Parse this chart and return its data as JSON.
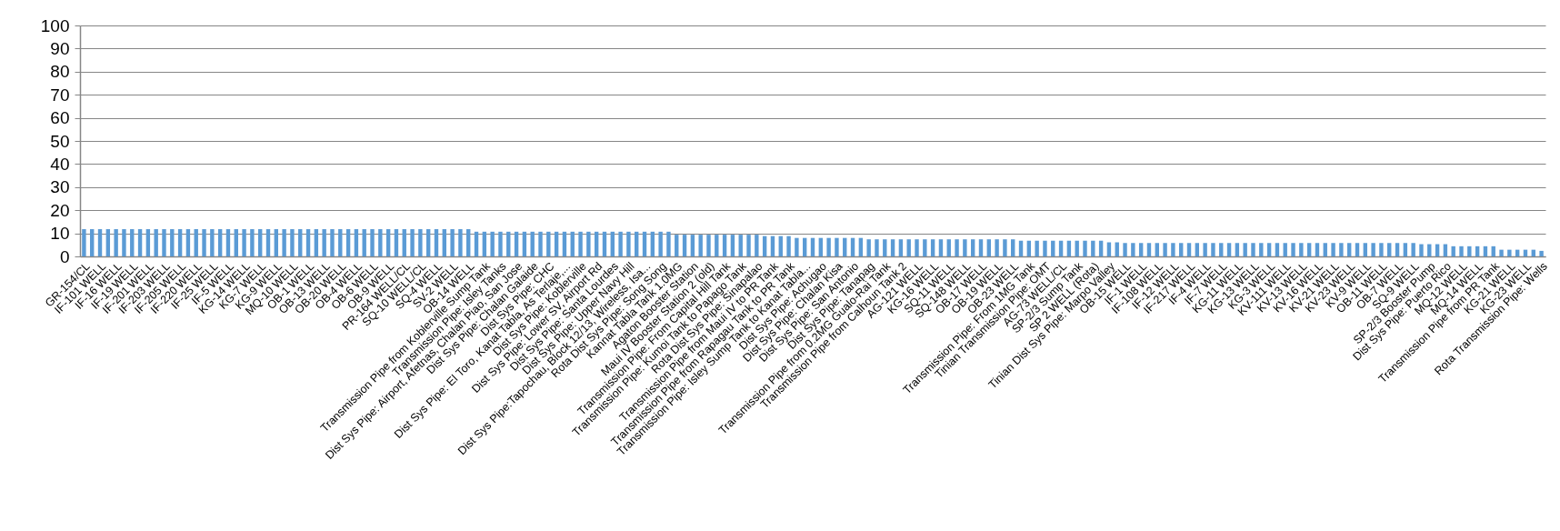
{
  "chart_data": {
    "type": "bar",
    "categories": [
      "GR-154/CL",
      null,
      "IF-101 WELL",
      null,
      "IF-16 WELL",
      null,
      "IF-19 WELL",
      null,
      "IF-201 WELL",
      null,
      "IF-203 WELL",
      null,
      "IF-205 WELL",
      null,
      "IF-220 WELL",
      null,
      "IF-25 WELL",
      null,
      "IF-5 WELL",
      null,
      "KG-14 WELL",
      null,
      "KG-7 WELL",
      null,
      "KG-9 WELL",
      null,
      "MQ-10 WELL",
      null,
      "OB-1 WELL",
      null,
      "OB-13 WELL",
      null,
      "OB-20 WELL",
      null,
      "OB-4 WELL",
      null,
      "OB-6 WELL",
      null,
      "OB-9 WELL",
      null,
      "PR-164 WELL/CL",
      null,
      "SQ-10 WELL/CL",
      null,
      "SQ-4 WELL",
      null,
      "SV-2 WELL",
      null,
      "OB-14 WELL",
      null,
      "Transmission Pipe from Koblerville Sump Tank",
      null,
      "Transmission Pipe: Isley Tanks",
      null,
      "Dist Sys Pipe: Airport, Afetnas, Chalan Piao, San Jose",
      null,
      "Dist Sys Pipe: Chalan Galaide",
      null,
      "Dist Sys Pipe: CHC",
      null,
      "Dist Sys Pipe: El Toro, Kanat Tabla, As Terlaje,...",
      null,
      "Dist Sys Pipe: Koblerville",
      null,
      "Dist Sys Pipe: Lower SV, Airport Rd",
      null,
      "Dist Sys Pipe: Santa Lourdes",
      null,
      "Dist Sys Pipe: Upper Navy Hill",
      null,
      "Dist Sys Pipe:Tapochau, Block 12/13, Wireless, Isa...",
      null,
      "Rota Dist Sys Pipe: Song Song",
      null,
      "Kannat Tabla Tank 1.0MG",
      null,
      "Agaton Booster Station",
      null,
      "Maui IV Booster Station 2 (old)",
      null,
      "Transmission Pipe: From Capital Hill Tank",
      null,
      "Transmission Pipe: Kumoi Tank to Papago Tank",
      null,
      "Rota Dist Sys Pipe: Sinapalao",
      null,
      "Transmission Pipe from Maui IV to PR Tank",
      null,
      "Transmission Pipe from Rapagau Tank to PR Tank",
      null,
      "Transmission Pipe: Isley Sump Tank to Kanat Tabla...",
      null,
      "Dist Sys Pipe: Achugao",
      null,
      "Dist Sys Pipe: Chalan Kisa",
      null,
      "Dist Sys Pipe: San Antonio",
      null,
      "Dist Sys Pipe: Tanapag",
      null,
      "Transmission Pipe from 0.2MG Gualo-Rai Tank",
      null,
      "Transmission Pipe from Calhoun Tank 2",
      null,
      "AG-121 WELL",
      null,
      "KG-16 WELL",
      null,
      "SQ-11 WELL",
      null,
      "SQ-148 WELL",
      null,
      "OB-17 WELL",
      null,
      "OB-19 WELL",
      null,
      "OB-23 WELL",
      null,
      "Transmission Pipe: From 1MG Tank",
      null,
      "Tinian Transmission Pipe: OMT",
      null,
      "AG-73 WELL/CL",
      null,
      "SP-2/3 Sump Tank",
      null,
      "SP 2 WELL (Rota)",
      null,
      "Tinian Dist Sys Pipe: Marpo Valley",
      null,
      "OB-15 WELL",
      null,
      "IF-1 WELL",
      null,
      "IF-108 WELL",
      null,
      "IF-12 WELL",
      null,
      "IF-217 WELL",
      null,
      "IF-4 WELL",
      null,
      "IF-7 WELL",
      null,
      "KG-11 WELL",
      null,
      "KG-13 WELL",
      null,
      "KG-3 WELL",
      null,
      "KV-111 WELL",
      null,
      "KV-13 WELL",
      null,
      "KV-16 WELL",
      null,
      "KV-21 WELL",
      null,
      "KV-23 WELL",
      null,
      "KV-9 WELL",
      null,
      "OB-11 WELL",
      null,
      "OB-7 WELL",
      null,
      "SQ-9 WELL",
      null,
      "SP-2/3 Booster Pump",
      null,
      "Dist Sys Pipe: Puerto Rico",
      null,
      "MQ-12 WELL",
      null,
      "MQ-14 WELL",
      null,
      "Transmission Pipe from PR Tank",
      null,
      "KG-21 WELL",
      null,
      "KG-23 WELL",
      null,
      "Rota Transmission Pipe: Wells"
    ],
    "values": [
      11.8,
      11.8,
      11.8,
      11.8,
      11.8,
      11.8,
      11.8,
      11.8,
      11.8,
      11.8,
      11.8,
      11.8,
      11.8,
      11.8,
      11.8,
      11.8,
      11.8,
      11.8,
      11.8,
      11.8,
      11.8,
      11.8,
      11.8,
      11.8,
      11.8,
      11.8,
      11.8,
      11.8,
      11.8,
      11.8,
      11.8,
      11.8,
      11.8,
      11.8,
      11.8,
      11.8,
      11.8,
      11.8,
      11.8,
      11.8,
      11.8,
      11.8,
      11.8,
      11.8,
      11.8,
      11.8,
      11.8,
      11.8,
      11.8,
      10.7,
      10.7,
      10.7,
      10.7,
      10.7,
      10.7,
      10.7,
      10.7,
      10.7,
      10.7,
      10.7,
      10.7,
      10.7,
      10.7,
      10.7,
      10.7,
      10.7,
      10.7,
      10.7,
      10.7,
      10.7,
      10.7,
      10.7,
      10.7,
      10.7,
      9.4,
      9.4,
      9.4,
      9.4,
      9.4,
      9.4,
      9.4,
      9.4,
      9.4,
      9.4,
      9.4,
      8.8,
      8.8,
      8.8,
      8.8,
      8,
      8,
      8,
      8,
      8,
      8,
      8,
      8,
      8,
      7.4,
      7.4,
      7.4,
      7.4,
      7.4,
      7.4,
      7.4,
      7.4,
      7.4,
      7.4,
      7.4,
      7.4,
      7.4,
      7.4,
      7.4,
      7.4,
      7.4,
      7.4,
      7.4,
      6.8,
      6.8,
      6.8,
      6.8,
      6.8,
      6.8,
      6.8,
      6.8,
      6.8,
      6.8,
      6.8,
      6.1,
      6.1,
      5.8,
      5.8,
      5.8,
      5.8,
      5.8,
      5.8,
      5.8,
      5.8,
      5.8,
      5.8,
      5.8,
      5.8,
      5.8,
      5.8,
      5.8,
      5.8,
      5.8,
      5.8,
      5.8,
      5.8,
      5.8,
      5.8,
      5.8,
      5.8,
      5.8,
      5.8,
      5.8,
      5.8,
      5.8,
      5.8,
      5.8,
      5.8,
      5.8,
      5.8,
      5.8,
      5.8,
      5.8,
      5.3,
      5.3,
      5.3,
      5.3,
      4.4,
      4.4,
      4.4,
      4.4,
      4.4,
      4.4,
      2.9,
      2.9,
      2.9,
      2.9,
      2.9,
      2.4
    ],
    "color": "#5b9bd5",
    "ylim": [
      0,
      100
    ],
    "yticks": [
      0,
      10,
      20,
      30,
      40,
      50,
      60,
      70,
      80,
      90,
      100
    ],
    "grid": "y"
  }
}
